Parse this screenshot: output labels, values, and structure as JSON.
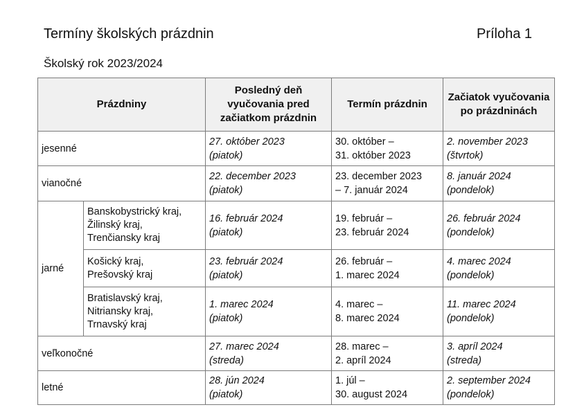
{
  "title": "Termíny školských prázdnin",
  "annex": "Príloha 1",
  "subtitle": "Školský rok 2023/2024",
  "headers": [
    "Prázdniny",
    "Posledný deň vyučovania pred začiatkom prázdnin",
    "Termín prázdnin",
    "Začiatok vyučovania po prázdninách"
  ],
  "rows": [
    {
      "name": "jesenné",
      "last": [
        "27. október 2023",
        "(piatok)"
      ],
      "term": [
        "30. október –",
        "31. október 2023"
      ],
      "start": [
        "2. november 2023",
        "(štvrtok)"
      ]
    },
    {
      "name": "vianočné",
      "last": [
        "22. december 2023",
        "(piatok)"
      ],
      "term": [
        "23. december 2023",
        "– 7. január 2024"
      ],
      "start": [
        "8. január 2024",
        "(pondelok)"
      ]
    },
    {
      "name": "jarné",
      "region": [
        "Banskobystrický kraj,",
        "Žilinský kraj,",
        "Trenčiansky kraj"
      ],
      "last": [
        "16. február 2024",
        "(piatok)"
      ],
      "term": [
        "19. február –",
        "23. február 2024"
      ],
      "start": [
        "26. február 2024",
        "(pondelok)"
      ]
    },
    {
      "region": [
        "Košický kraj,",
        "Prešovský kraj"
      ],
      "last": [
        "23. február 2024",
        "(piatok)"
      ],
      "term": [
        "26. február –",
        "1. marec 2024"
      ],
      "start": [
        "4. marec 2024",
        "(pondelok)"
      ]
    },
    {
      "region": [
        "Bratislavský kraj,",
        "Nitriansky kraj,",
        "Trnavský kraj"
      ],
      "last": [
        "1. marec 2024",
        "(piatok)"
      ],
      "term": [
        "4. marec –",
        "8. marec 2024"
      ],
      "start": [
        "11. marec 2024",
        "(pondelok)"
      ]
    },
    {
      "name": "veľkonočné",
      "last": [
        "27. marec 2024",
        "(streda)"
      ],
      "term": [
        "28. marec –",
        "2. apríl 2024"
      ],
      "start": [
        "3. apríl 2024",
        "(streda)"
      ]
    },
    {
      "name": "letné",
      "last": [
        "28. jún 2024",
        "(piatok)"
      ],
      "term": [
        "1. júl –",
        "30. august 2024"
      ],
      "start": [
        "2. september 2024",
        "(pondelok)"
      ]
    }
  ]
}
